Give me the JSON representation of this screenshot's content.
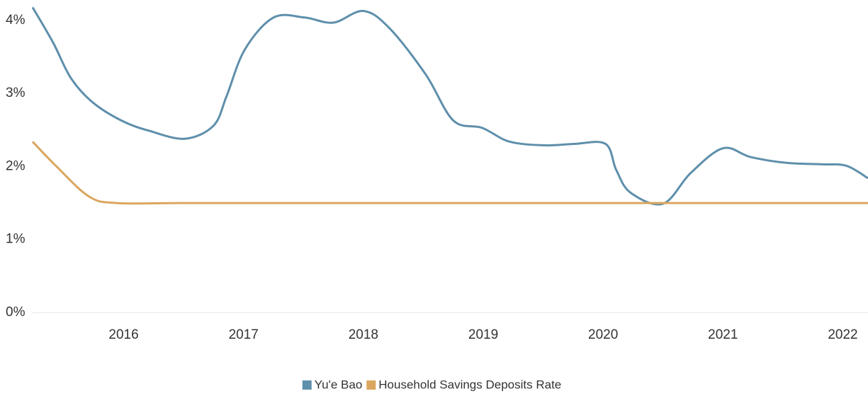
{
  "chart_data": {
    "type": "line",
    "series": [
      {
        "name": "Yu'e Bao",
        "color": "#5e8fab",
        "x": [
          2015.24,
          2015.41,
          2015.56,
          2015.74,
          2015.98,
          2016.21,
          2016.51,
          2016.75,
          2016.86,
          2017.01,
          2017.25,
          2017.51,
          2017.75,
          2018.0,
          2018.22,
          2018.52,
          2018.75,
          2018.99,
          2019.22,
          2019.52,
          2019.76,
          2020.02,
          2020.11,
          2020.23,
          2020.5,
          2020.73,
          2021.0,
          2021.23,
          2021.53,
          2021.83,
          2022.03,
          2022.21
        ],
        "values": [
          4.18,
          3.7,
          3.21,
          2.88,
          2.63,
          2.49,
          2.38,
          2.56,
          2.97,
          3.6,
          4.04,
          4.04,
          3.97,
          4.13,
          3.89,
          3.26,
          2.63,
          2.53,
          2.34,
          2.29,
          2.31,
          2.31,
          1.95,
          1.64,
          1.49,
          1.91,
          2.25,
          2.13,
          2.05,
          2.03,
          2.01,
          1.84
        ]
      },
      {
        "name": "Household Savings Deposits Rate",
        "color": "#dba660",
        "x": [
          2015.24,
          2015.44,
          2015.71,
          2015.94,
          2016.5,
          2017.5,
          2018.5,
          2019.5,
          2020.5,
          2021.5,
          2022.21
        ],
        "values": [
          2.34,
          2.0,
          1.59,
          1.5,
          1.5,
          1.5,
          1.5,
          1.5,
          1.5,
          1.5,
          1.5
        ]
      }
    ],
    "xlim": [
      2015.24,
      2022.21
    ],
    "xticks": [
      2016,
      2017,
      2018,
      2019,
      2020,
      2021,
      2022
    ],
    "ylim": [
      0,
      4.28
    ],
    "yticks": [
      {
        "value": 0,
        "label": "0%"
      },
      {
        "value": 1,
        "label": "1%"
      },
      {
        "value": 2,
        "label": "2%"
      },
      {
        "value": 3,
        "label": "3%"
      },
      {
        "value": 4,
        "label": "4%"
      }
    ],
    "legend": "bottom"
  }
}
